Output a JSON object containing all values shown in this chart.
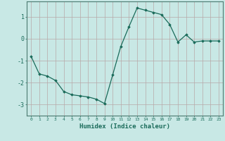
{
  "x": [
    0,
    1,
    2,
    3,
    4,
    5,
    6,
    7,
    8,
    9,
    10,
    11,
    12,
    13,
    14,
    15,
    16,
    17,
    18,
    19,
    20,
    21,
    22,
    23
  ],
  "y": [
    -0.8,
    -1.6,
    -1.7,
    -1.9,
    -2.4,
    -2.55,
    -2.6,
    -2.65,
    -2.75,
    -2.95,
    -1.65,
    -0.35,
    0.55,
    1.4,
    1.3,
    1.2,
    1.1,
    0.65,
    -0.15,
    0.18,
    -0.15,
    -0.1,
    -0.1,
    -0.1
  ],
  "xlabel": "Humidex (Indice chaleur)",
  "xlim": [
    -0.5,
    23.5
  ],
  "ylim": [
    -3.5,
    1.7
  ],
  "yticks": [
    -3,
    -2,
    -1,
    0,
    1
  ],
  "xticks": [
    0,
    1,
    2,
    3,
    4,
    5,
    6,
    7,
    8,
    9,
    10,
    11,
    12,
    13,
    14,
    15,
    16,
    17,
    18,
    19,
    20,
    21,
    22,
    23
  ],
  "line_color": "#1a6b5a",
  "marker_color": "#1a6b5a",
  "bg_color": "#c8e8e5",
  "grid_color": "#b8a8a8",
  "tick_color": "#1a6b5a",
  "label_color": "#1a6b5a",
  "spine_color": "#4a7a70"
}
